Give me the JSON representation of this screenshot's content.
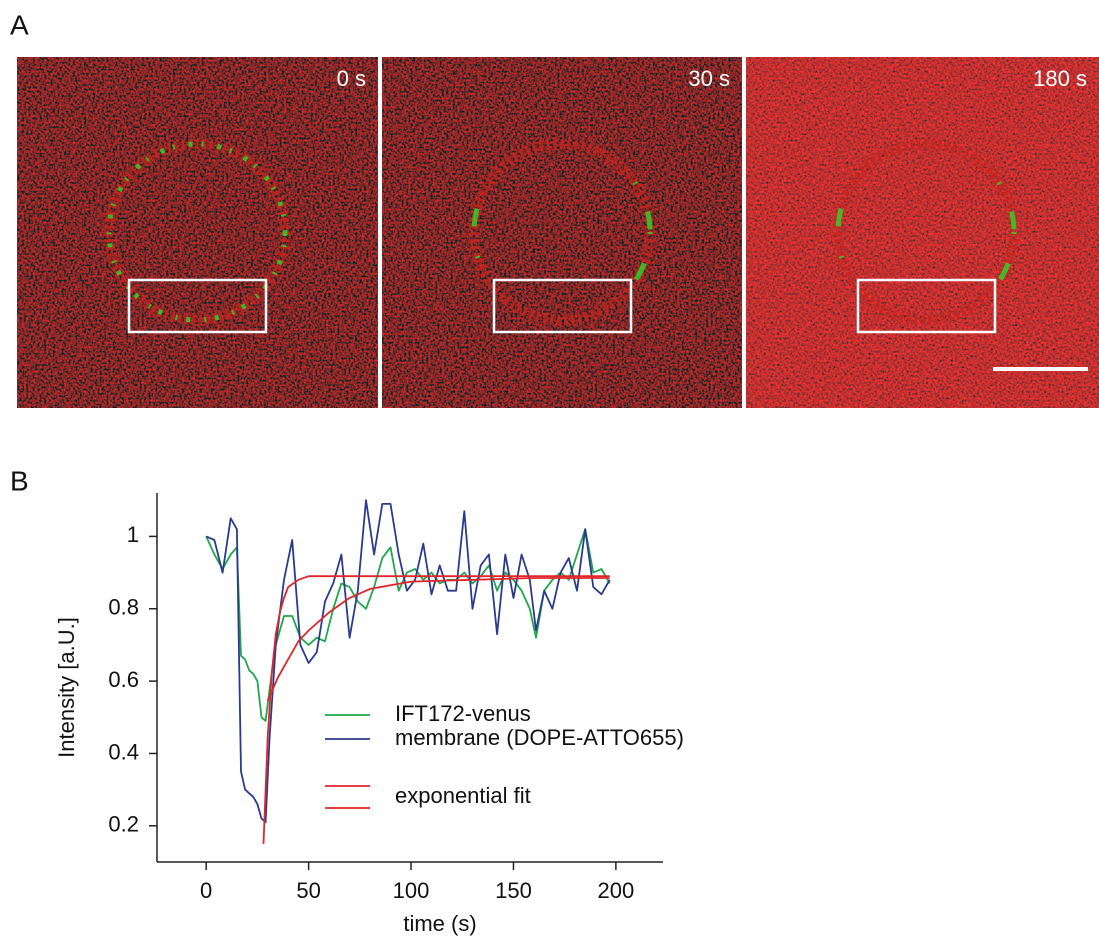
{
  "panel_a": {
    "label": "A",
    "frames": [
      {
        "time": "0 s"
      },
      {
        "time": "30 s"
      },
      {
        "time": "180 s"
      }
    ]
  },
  "panel_b": {
    "label": "B"
  },
  "chart_data": {
    "type": "line",
    "xlabel": "time (s)",
    "ylabel": "Intensity [a.U.]",
    "xlim": [
      -24,
      223
    ],
    "xticks": [
      0,
      50,
      100,
      150,
      200
    ],
    "ylim": [
      0.1,
      1.12
    ],
    "yticks": [
      0.2,
      0.4,
      0.6,
      0.8,
      1.0
    ],
    "series": [
      {
        "name": "IFT172-venus",
        "color": "#1ea84a",
        "x": [
          0,
          4,
          8,
          12,
          15,
          17,
          19,
          21,
          23,
          25,
          27,
          29,
          31,
          34,
          38,
          42,
          46,
          50,
          54,
          58,
          62,
          66,
          70,
          74,
          78,
          82,
          86,
          90,
          94,
          98,
          102,
          106,
          110,
          114,
          118,
          122,
          126,
          130,
          134,
          138,
          142,
          146,
          150,
          154,
          158,
          161,
          165,
          169,
          173,
          177,
          181,
          185,
          189,
          193,
          197
        ],
        "values": [
          1.0,
          0.95,
          0.91,
          0.95,
          0.97,
          0.67,
          0.66,
          0.63,
          0.62,
          0.6,
          0.5,
          0.49,
          0.58,
          0.7,
          0.78,
          0.78,
          0.72,
          0.7,
          0.72,
          0.71,
          0.8,
          0.87,
          0.86,
          0.82,
          0.8,
          0.86,
          0.94,
          0.97,
          0.85,
          0.9,
          0.91,
          0.88,
          0.9,
          0.87,
          0.88,
          0.88,
          0.9,
          0.87,
          0.89,
          0.92,
          0.85,
          0.9,
          0.88,
          0.85,
          0.8,
          0.72,
          0.85,
          0.88,
          0.9,
          0.88,
          0.95,
          1.02,
          0.9,
          0.91,
          0.87
        ]
      },
      {
        "name": "membrane (DOPE-ATTO655)",
        "color": "#2b3a8f",
        "x": [
          0,
          4,
          8,
          12,
          15,
          17,
          19,
          21,
          23,
          25,
          27,
          29,
          31,
          34,
          38,
          42,
          46,
          50,
          54,
          58,
          62,
          66,
          70,
          74,
          78,
          82,
          86,
          90,
          94,
          98,
          102,
          106,
          110,
          114,
          118,
          122,
          126,
          130,
          134,
          138,
          142,
          146,
          150,
          154,
          158,
          161,
          165,
          169,
          173,
          177,
          181,
          185,
          189,
          193,
          197
        ],
        "values": [
          1.0,
          0.99,
          0.9,
          1.05,
          1.02,
          0.35,
          0.3,
          0.29,
          0.28,
          0.26,
          0.22,
          0.21,
          0.45,
          0.7,
          0.88,
          0.99,
          0.7,
          0.65,
          0.68,
          0.82,
          0.87,
          0.95,
          0.72,
          0.85,
          1.1,
          0.95,
          1.09,
          1.09,
          0.95,
          0.85,
          0.88,
          0.98,
          0.84,
          0.92,
          0.85,
          0.85,
          1.07,
          0.8,
          0.92,
          0.95,
          0.73,
          0.95,
          0.83,
          0.95,
          0.88,
          0.74,
          0.85,
          0.8,
          0.9,
          0.94,
          0.85,
          1.02,
          0.86,
          0.84,
          0.88
        ]
      },
      {
        "name": "exponential fit",
        "color": "#e0262a",
        "x": [
          28,
          30,
          32,
          34,
          36,
          38,
          40,
          45,
          50,
          100,
          197
        ],
        "values": [
          0.15,
          0.44,
          0.62,
          0.73,
          0.79,
          0.83,
          0.86,
          0.88,
          0.89,
          0.89,
          0.89
        ]
      },
      {
        "name": null,
        "color": "#e0262a",
        "x": [
          30,
          35,
          40,
          45,
          50,
          60,
          70,
          80,
          100,
          130,
          160,
          197
        ],
        "values": [
          0.545,
          0.61,
          0.66,
          0.71,
          0.74,
          0.79,
          0.83,
          0.855,
          0.875,
          0.88,
          0.885,
          0.885
        ]
      }
    ]
  }
}
